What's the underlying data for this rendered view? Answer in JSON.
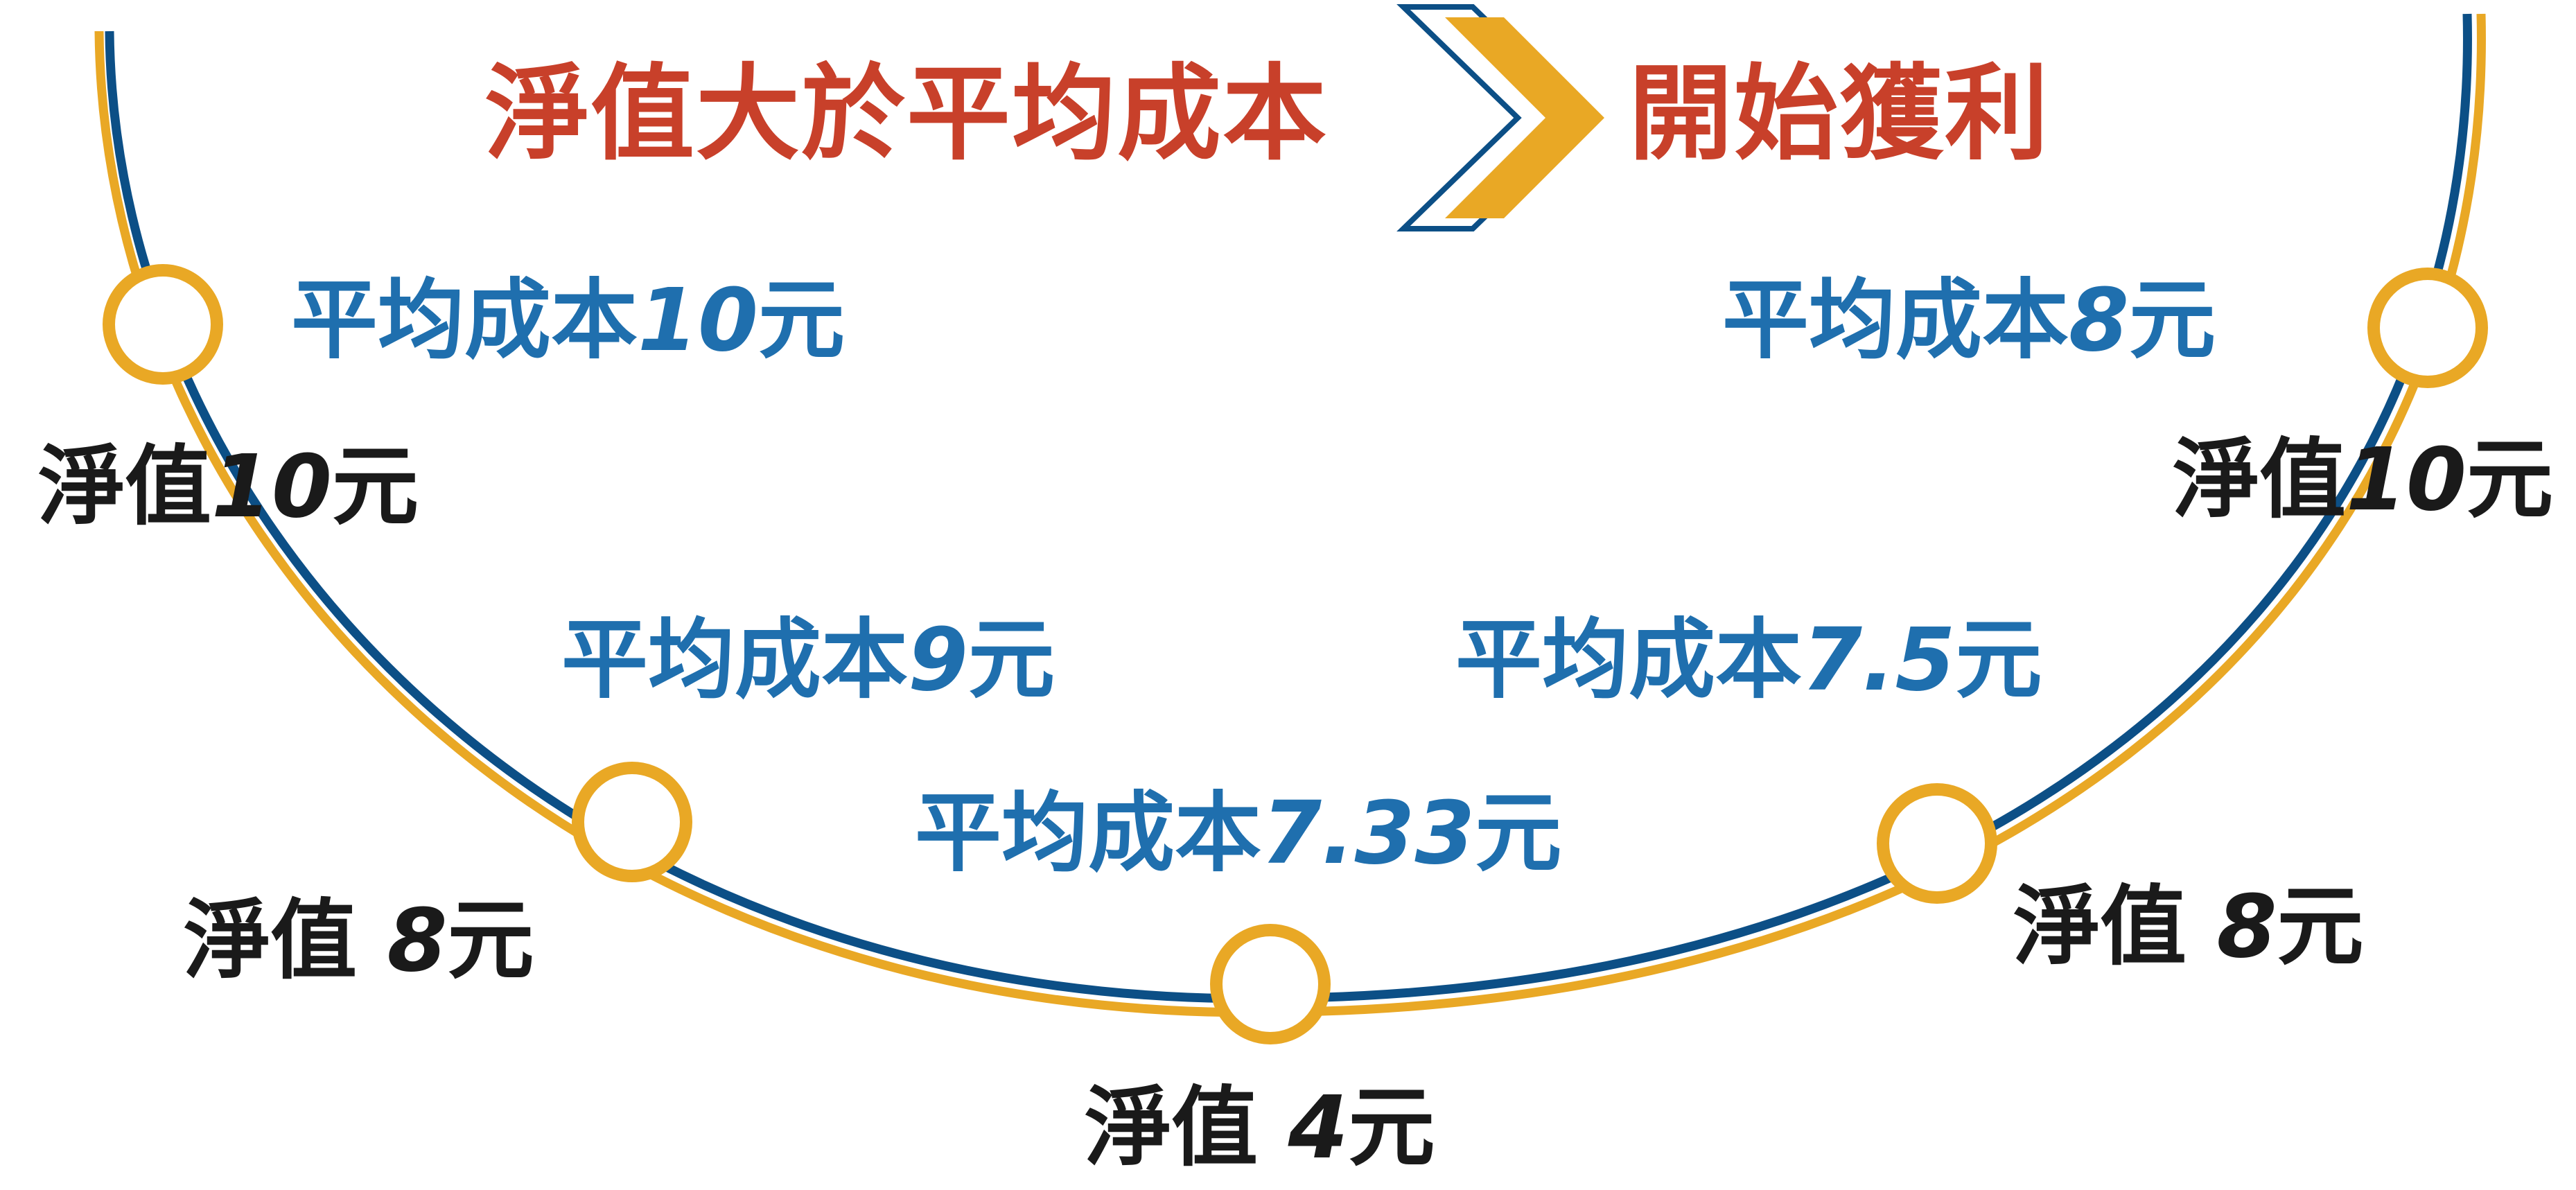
{
  "title": {
    "left": "淨值大於平均成本",
    "right": "開始獲利",
    "arrow_icon": "double-chevron-right-icon"
  },
  "colors": {
    "headline": "#c8402a",
    "cost_text": "#1f6fae",
    "nav_text": "#1a1a1a",
    "curve_blue": "#0c4f86",
    "curve_gold": "#e9a825",
    "chevron_blue": "#0c4f86",
    "chevron_gold": "#e9a825"
  },
  "points": [
    {
      "cost_prefix": "平均成本",
      "cost_value": "10",
      "cost_unit": "元",
      "nav_prefix": "淨值",
      "nav_value": "10",
      "nav_unit": "元"
    },
    {
      "cost_prefix": "平均成本",
      "cost_value": "9",
      "cost_unit": "元",
      "nav_prefix": "淨值 ",
      "nav_value": "8",
      "nav_unit": "元"
    },
    {
      "cost_prefix": "平均成本",
      "cost_value": "7.33",
      "cost_unit": "元",
      "nav_prefix": "淨值 ",
      "nav_value": "4",
      "nav_unit": "元"
    },
    {
      "cost_prefix": "平均成本",
      "cost_value": "7.5",
      "cost_unit": "元",
      "nav_prefix": "淨值 ",
      "nav_value": "8",
      "nav_unit": "元"
    },
    {
      "cost_prefix": "平均成本",
      "cost_value": "8",
      "cost_unit": "元",
      "nav_prefix": "淨值",
      "nav_value": "10",
      "nav_unit": "元"
    }
  ]
}
